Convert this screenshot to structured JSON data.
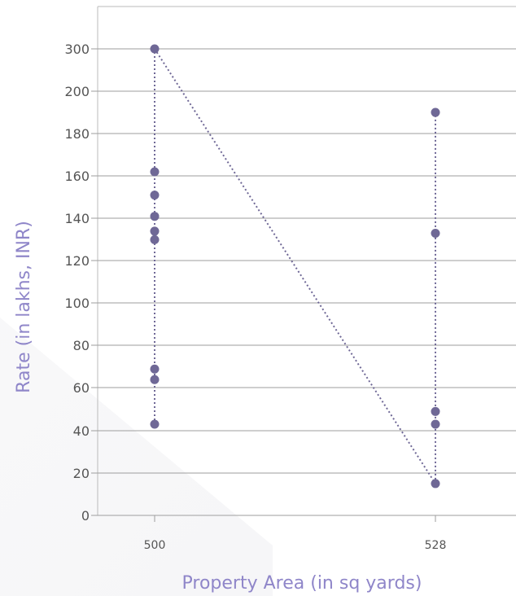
{
  "chart_data": {
    "type": "line",
    "title": "",
    "xlabel": "Property Area (in sq yards)",
    "ylabel": "Rate (in lakhs, INR)",
    "categories": [
      "500",
      "528"
    ],
    "y_tick_labels": [
      "0",
      "20",
      "40",
      "60",
      "80",
      "100",
      "120",
      "140",
      "160",
      "180",
      "200",
      "300"
    ],
    "grid": true,
    "legend": "none",
    "colors": {
      "series": "#6f6896",
      "axis_title": "#8f86c9",
      "tick": "#555555",
      "grid": "#9e9e9e"
    },
    "series": [
      {
        "points": [
          {
            "x": "500",
            "y": 43
          },
          {
            "x": "500",
            "y": 64
          },
          {
            "x": "500",
            "y": 69
          },
          {
            "x": "500",
            "y": 130
          },
          {
            "x": "500",
            "y": 134
          },
          {
            "x": "500",
            "y": 141
          },
          {
            "x": "500",
            "y": 151
          },
          {
            "x": "500",
            "y": 162
          },
          {
            "x": "500",
            "y": 300
          },
          {
            "x": "528",
            "y": 15
          },
          {
            "x": "528",
            "y": 43
          },
          {
            "x": "528",
            "y": 49
          },
          {
            "x": "528",
            "y": 133
          },
          {
            "x": "528",
            "y": 190
          }
        ]
      }
    ]
  }
}
